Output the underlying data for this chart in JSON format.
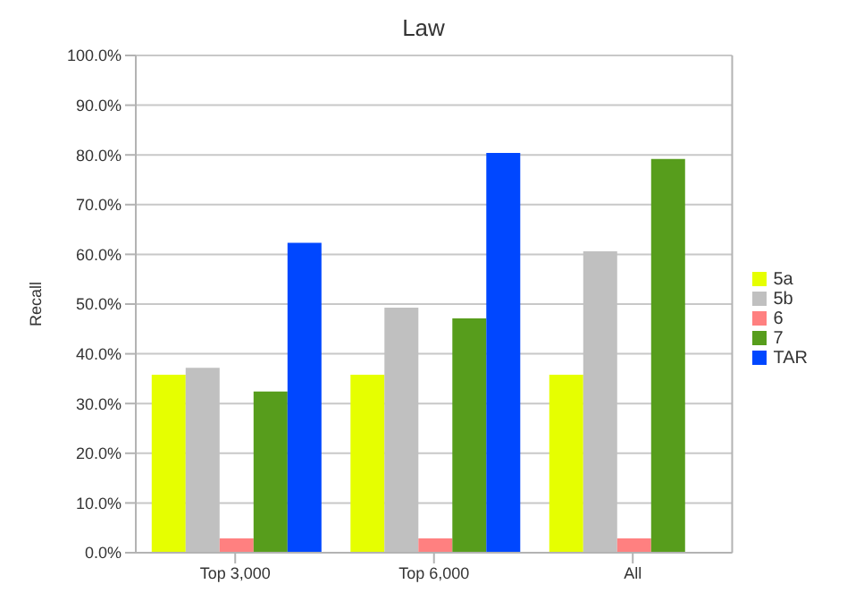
{
  "chart_data": {
    "type": "bar",
    "title": "Law",
    "ylabel": "Recall",
    "categories": [
      "Top 3,000",
      "Top 6,000",
      "All"
    ],
    "series": [
      {
        "name": "5a",
        "color": "#e6ff00",
        "values": [
          35.8,
          35.8,
          35.8
        ]
      },
      {
        "name": "5b",
        "color": "#c0c0c0",
        "values": [
          37.2,
          49.3,
          60.6
        ]
      },
      {
        "name": "6",
        "color": "#ff8080",
        "values": [
          2.9,
          2.9,
          2.9
        ]
      },
      {
        "name": "7",
        "color": "#579d1c",
        "values": [
          32.4,
          47.1,
          79.2
        ]
      },
      {
        "name": "TAR",
        "color": "#0047ff",
        "values": [
          62.3,
          80.4,
          null
        ]
      }
    ],
    "ylim": [
      0,
      100
    ],
    "yticks": [
      {
        "value": 0,
        "label": "0.0%"
      },
      {
        "value": 10,
        "label": "10.0%"
      },
      {
        "value": 20,
        "label": "20.0%"
      },
      {
        "value": 30,
        "label": "30.0%"
      },
      {
        "value": 40,
        "label": "40.0%"
      },
      {
        "value": 50,
        "label": "50.0%"
      },
      {
        "value": 60,
        "label": "60.0%"
      },
      {
        "value": 70,
        "label": "70.0%"
      },
      {
        "value": 80,
        "label": "80.0%"
      },
      {
        "value": 90,
        "label": "90.0%"
      },
      {
        "value": 100,
        "label": "100.0%"
      }
    ],
    "grid": "y",
    "legend": "right"
  }
}
